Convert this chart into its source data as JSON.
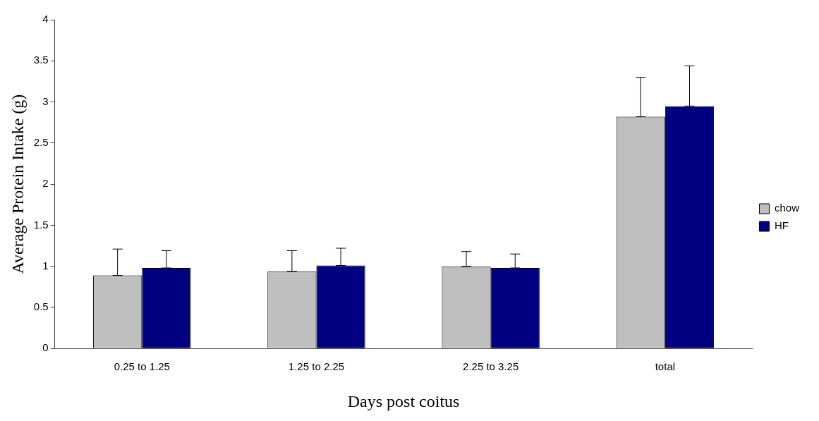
{
  "chart_data": {
    "type": "bar",
    "xlabel": "Days post coitus",
    "ylabel": "Average Protein Intake (g)",
    "categories": [
      "0.25 to 1.25",
      "1.25 to 2.25",
      "2.25 to 3.25",
      "total"
    ],
    "series": [
      {
        "name": "chow",
        "color": "#bfbfbf",
        "values": [
          0.89,
          0.94,
          1.0,
          2.82
        ],
        "errors": [
          [
            0.89,
            1.21
          ],
          [
            0.94,
            1.19
          ],
          [
            1.0,
            1.18
          ],
          [
            2.82,
            3.3
          ]
        ]
      },
      {
        "name": "HF",
        "color": "#000080",
        "values": [
          0.98,
          1.01,
          0.98,
          2.95
        ],
        "errors": [
          [
            0.98,
            1.19
          ],
          [
            1.01,
            1.22
          ],
          [
            0.98,
            1.15
          ],
          [
            2.95,
            3.44
          ]
        ]
      }
    ],
    "ylim": [
      0,
      4
    ],
    "yticks": [
      0,
      0.5,
      1,
      1.5,
      2,
      2.5,
      3,
      3.5,
      4
    ],
    "grid": false,
    "legend": "right"
  }
}
